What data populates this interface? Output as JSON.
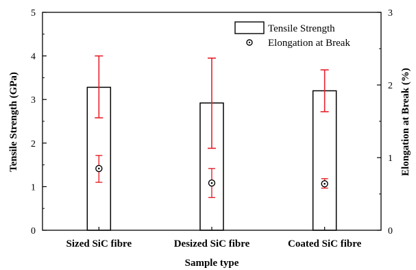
{
  "chart_data": {
    "type": "bar",
    "categories": [
      "Sized SiC fibre",
      "Desized SiC fibre",
      "Coated SiC fibre"
    ],
    "xlabel": "Sample type",
    "ylabel": "Tensile Strength (GPa)",
    "y2label": "Elongation at Break (%)",
    "ylim": [
      0,
      5
    ],
    "y2lim": [
      0,
      3
    ],
    "yticks": [
      "0",
      "1",
      "2",
      "3",
      "4",
      "5"
    ],
    "y2ticks": [
      "0",
      "1",
      "2",
      "3"
    ],
    "legend_position": "top-right",
    "series": [
      {
        "name": "Tensile Strength",
        "kind": "bar",
        "axis": "left",
        "values": [
          3.28,
          2.92,
          3.2
        ],
        "error_low": [
          2.58,
          1.88,
          2.72
        ],
        "error_high": [
          4.0,
          3.95,
          3.68
        ]
      },
      {
        "name": "Elongation at Break",
        "kind": "scatter",
        "axis": "right",
        "values": [
          0.85,
          0.65,
          0.64
        ],
        "error_low": [
          0.66,
          0.45,
          0.58
        ],
        "error_high": [
          1.03,
          0.85,
          0.71
        ]
      }
    ],
    "colors": {
      "error_bar": "#e8202a",
      "bar_stroke": "#000000",
      "marker": "#000000"
    }
  }
}
